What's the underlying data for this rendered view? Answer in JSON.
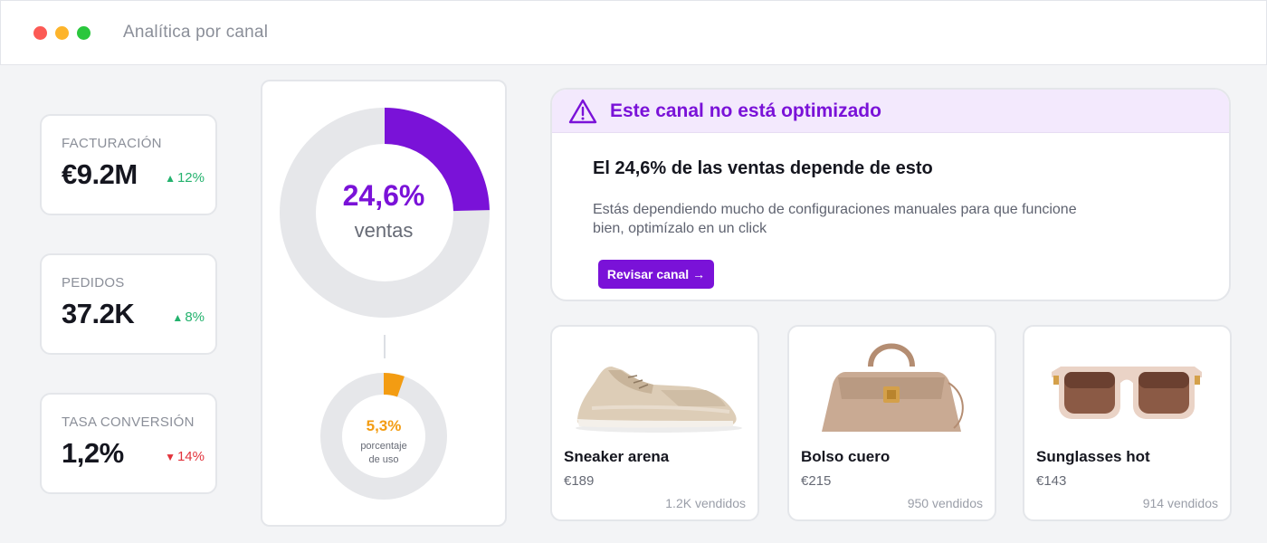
{
  "window": {
    "title": "Analítica por canal"
  },
  "kpis": [
    {
      "label": "FACTURACIÓN",
      "value": "€9.2M",
      "delta": "12%",
      "direction": "up"
    },
    {
      "label": "PEDIDOS",
      "value": "37.2K",
      "delta": "8%",
      "direction": "up"
    },
    {
      "label": "TASA CONVERSIÓN",
      "value": "1,2%",
      "delta": "14%",
      "direction": "down"
    }
  ],
  "donuts": {
    "main": {
      "value_text": "24,6%",
      "label": "ventas",
      "fraction": 0.246,
      "color": "#7a12d8",
      "track": "#e6e7ea"
    },
    "secondary": {
      "value_text": "5,3%",
      "label": "porcentaje de uso",
      "fraction": 0.053,
      "color": "#f39c12",
      "track": "#e6e7ea"
    }
  },
  "alert": {
    "title": "Este canal no está optimizado",
    "subtitle": "El 24,6% de las ventas depende de esto",
    "body": "Estás dependiendo mucho de configuraciones manuales para que funcione bien, optimízalo en un click",
    "button": "Revisar canal →",
    "icon": "warning-triangle-icon"
  },
  "products": [
    {
      "name": "Sneaker arena",
      "price": "€189",
      "sold": "1.2K vendidos",
      "icon": "sneaker-image"
    },
    {
      "name": "Bolso cuero",
      "price": "€215",
      "sold": "950 vendidos",
      "icon": "handbag-image"
    },
    {
      "name": "Sunglasses hot",
      "price": "€143",
      "sold": "914 vendidos",
      "icon": "sunglasses-image"
    }
  ],
  "colors": {
    "accent": "#7a12d8",
    "positive": "#23b26d",
    "negative": "#e2323b",
    "secondary_accent": "#f39c12"
  }
}
